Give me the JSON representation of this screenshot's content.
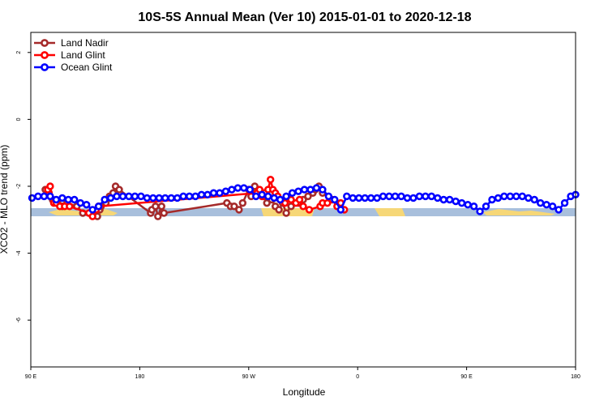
{
  "chart_data": {
    "type": "line",
    "title": "10S-5S Annual Mean (Ver 10)   2015-01-01 to 2020-12-18",
    "xlabel": "Longitude",
    "ylabel": "XCO2 - MLO trend (ppm)",
    "x_ticks": [
      "90 E",
      "180",
      "90 W",
      "0",
      "90 E",
      "180"
    ],
    "x_tick_positions": [
      90,
      180,
      270,
      360,
      450,
      540
    ],
    "xlim": [
      90,
      540
    ],
    "ylim": [
      -7.4,
      2.6
    ],
    "y_ticks": [
      2,
      0,
      -2,
      -4,
      -6
    ],
    "y_tick_labels": [
      "2",
      "0",
      "-2",
      "-4",
      "-6"
    ],
    "legend_position": "top-left",
    "series": [
      {
        "name": "Land Nadir",
        "color": "#a52a2a",
        "x": [
          102,
          105,
          108,
          112,
          116,
          120,
          128,
          133,
          145,
          147,
          148,
          152,
          155,
          158,
          160,
          163,
          189,
          190,
          193,
          195,
          198,
          200,
          252,
          255,
          258,
          262,
          265,
          270,
          272,
          275,
          278,
          282,
          285,
          289,
          292,
          295,
          298,
          301,
          305,
          311,
          315,
          319,
          323,
          325,
          328,
          331
        ],
        "values": [
          -2.1,
          -2.2,
          -2.4,
          -2.5,
          -2.6,
          -2.5,
          -2.6,
          -2.8,
          -2.9,
          -2.7,
          -2.6,
          -2.5,
          -2.3,
          -2.2,
          -2.0,
          -2.1,
          -2.8,
          -2.7,
          -2.6,
          -2.9,
          -2.6,
          -2.8,
          -2.5,
          -2.6,
          -2.6,
          -2.7,
          -2.5,
          -2.1,
          -2.3,
          -2.0,
          -2.2,
          -2.3,
          -2.5,
          -2.4,
          -2.6,
          -2.7,
          -2.5,
          -2.8,
          -2.6,
          -2.5,
          -2.4,
          -2.3,
          -2.2,
          -2.1,
          -2.0,
          -2.2
        ]
      },
      {
        "name": "Land Glint",
        "color": "#ff0000",
        "x": [
          104,
          106,
          109,
          111,
          114,
          118,
          122,
          138,
          141,
          144,
          146,
          277,
          279,
          281,
          283,
          286,
          288,
          290,
          292,
          294,
          296,
          300,
          305,
          309,
          312,
          315,
          320,
          329,
          331,
          335,
          339,
          343,
          346,
          349
        ],
        "values": [
          -2.1,
          -2.0,
          -2.5,
          -2.5,
          -2.6,
          -2.6,
          -2.6,
          -2.8,
          -2.9,
          -2.7,
          -2.6,
          -2.2,
          -2.1,
          -2.3,
          -2.2,
          -2.1,
          -1.8,
          -2.1,
          -2.2,
          -2.3,
          -2.4,
          -2.5,
          -2.4,
          -2.5,
          -2.4,
          -2.6,
          -2.7,
          -2.6,
          -2.5,
          -2.5,
          -2.4,
          -2.6,
          -2.5,
          -2.7
        ]
      },
      {
        "name": "Ocean Glint",
        "color": "#0000ff",
        "x": [
          91,
          96,
          101,
          106,
          111,
          116,
          121,
          126,
          131,
          136,
          141,
          146,
          151,
          156,
          161,
          166,
          171,
          176,
          181,
          186,
          191,
          196,
          201,
          206,
          211,
          216,
          221,
          226,
          231,
          236,
          241,
          246,
          251,
          256,
          261,
          266,
          271,
          276,
          281,
          286,
          291,
          296,
          301,
          306,
          311,
          316,
          321,
          326,
          331,
          336,
          341,
          346,
          351,
          356,
          361,
          366,
          371,
          376,
          381,
          386,
          391,
          396,
          401,
          406,
          411,
          416,
          421,
          426,
          431,
          436,
          441,
          446,
          451,
          456,
          461,
          466,
          471,
          476,
          481,
          486,
          491,
          496,
          501,
          506,
          511,
          516,
          521,
          526,
          531,
          536,
          540
        ],
        "values": [
          -2.35,
          -2.3,
          -2.3,
          -2.3,
          -2.4,
          -2.35,
          -2.4,
          -2.4,
          -2.5,
          -2.55,
          -2.7,
          -2.6,
          -2.4,
          -2.35,
          -2.3,
          -2.3,
          -2.3,
          -2.3,
          -2.3,
          -2.35,
          -2.35,
          -2.35,
          -2.35,
          -2.35,
          -2.35,
          -2.3,
          -2.3,
          -2.3,
          -2.25,
          -2.25,
          -2.2,
          -2.2,
          -2.15,
          -2.1,
          -2.05,
          -2.05,
          -2.1,
          -2.3,
          -2.25,
          -2.3,
          -2.35,
          -2.4,
          -2.3,
          -2.2,
          -2.15,
          -2.1,
          -2.1,
          -2.05,
          -2.1,
          -2.3,
          -2.4,
          -2.7,
          -2.3,
          -2.35,
          -2.35,
          -2.35,
          -2.35,
          -2.35,
          -2.3,
          -2.3,
          -2.3,
          -2.3,
          -2.35,
          -2.35,
          -2.3,
          -2.3,
          -2.3,
          -2.35,
          -2.4,
          -2.4,
          -2.45,
          -2.5,
          -2.55,
          -2.6,
          -2.75,
          -2.6,
          -2.4,
          -2.35,
          -2.3,
          -2.3,
          -2.3,
          -2.3,
          -2.35,
          -2.4,
          -2.5,
          -2.55,
          -2.6,
          -2.7,
          -2.5,
          -2.3,
          -2.25
        ]
      }
    ]
  }
}
